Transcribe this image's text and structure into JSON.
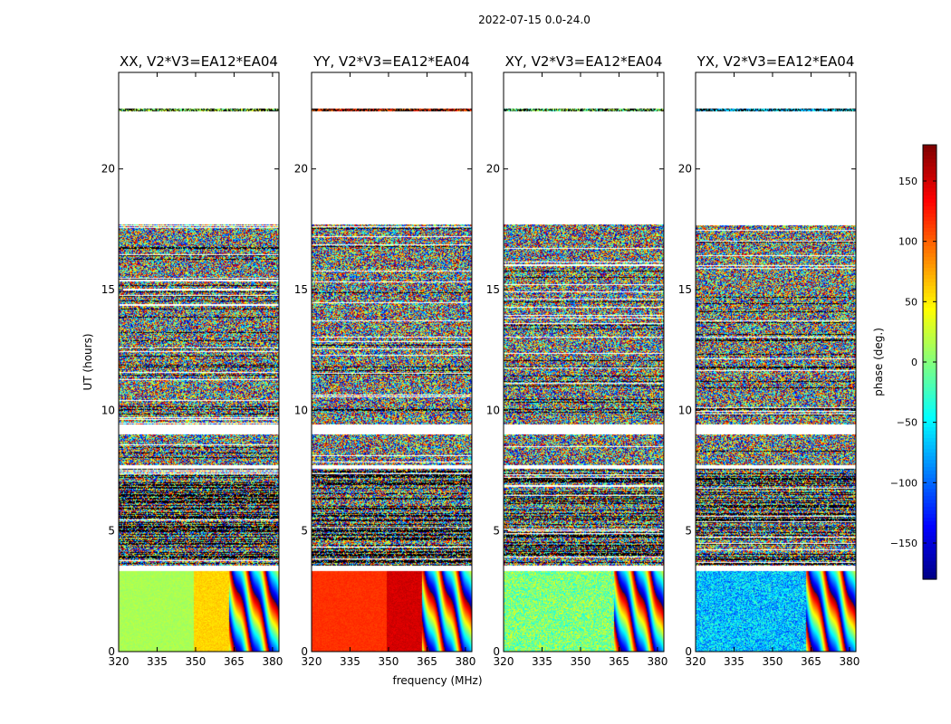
{
  "figure": {
    "suptitle": "2022-07-15 0.0-24.0"
  },
  "chart_data": {
    "type": "heatmap",
    "shared": {
      "xlabel": "frequency (MHz)",
      "ylabel": "UT (hours)",
      "xlim": [
        320,
        382.5
      ],
      "ylim": [
        0,
        24
      ],
      "xticks": [
        320,
        335,
        350,
        365,
        380
      ],
      "yticks": [
        0,
        5,
        10,
        15,
        20
      ],
      "data_bands_hours": [
        {
          "from": 0.0,
          "to": 3.35,
          "kind": "smooth"
        },
        {
          "from": 3.6,
          "to": 7.6,
          "kind": "noisy-dark"
        },
        {
          "from": 7.75,
          "to": 9.0,
          "kind": "noisy"
        },
        {
          "from": 9.45,
          "to": 17.7,
          "kind": "noisy"
        },
        {
          "from": 22.4,
          "to": 22.5,
          "kind": "thin"
        }
      ],
      "fringe_start_mhz": 363
    },
    "panels": [
      {
        "title": "XX, V2*V3=EA12*EA04",
        "smooth_phase_deg": 15,
        "alt_phase_deg": 60,
        "smooth_noise": 8
      },
      {
        "title": "YY, V2*V3=EA12*EA04",
        "smooth_phase_deg": 118,
        "alt_phase_deg": 150,
        "smooth_noise": 6
      },
      {
        "title": "XY, V2*V3=EA12*EA04",
        "smooth_phase_deg": 0,
        "alt_phase_deg": 30,
        "smooth_noise": 45
      },
      {
        "title": "YX, V2*V3=EA12*EA04",
        "smooth_phase_deg": -65,
        "alt_phase_deg": -30,
        "smooth_noise": 50
      }
    ],
    "colorbar": {
      "label": "phase (deg.)",
      "range": [
        -180,
        180
      ],
      "ticks": [
        150,
        100,
        50,
        0,
        -50,
        -100,
        -150
      ],
      "tick_labels": [
        "150",
        "100",
        "50",
        "0",
        "−50",
        "−100",
        "−150"
      ],
      "colormap": "jet"
    }
  }
}
